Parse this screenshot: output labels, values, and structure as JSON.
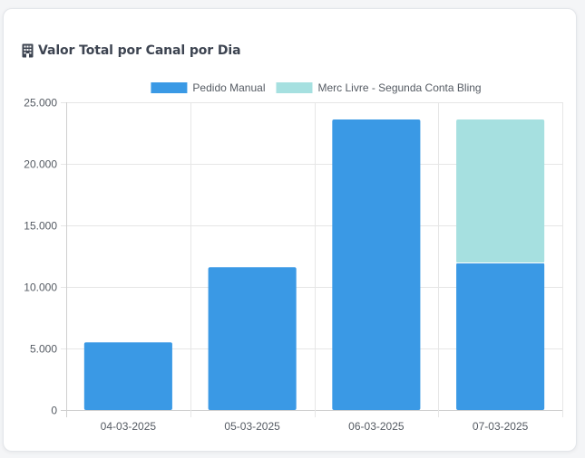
{
  "card": {
    "title": "Valor Total por Canal por Dia",
    "icon": "building-icon"
  },
  "colors": {
    "series_pedido_manual": "#3a99e5",
    "series_merc_livre": "#a6e0e0",
    "grid": "#e6e6e6",
    "axis_text": "#555b63",
    "title": "#3d4451"
  },
  "chart_data": {
    "type": "bar",
    "stacked": true,
    "title": "Valor Total por Canal por Dia",
    "xlabel": "",
    "ylabel": "",
    "ylim": [
      0,
      25000
    ],
    "yticks": [
      0,
      5000,
      10000,
      15000,
      20000,
      25000
    ],
    "ytick_labels": [
      "0",
      "5.000",
      "10.000",
      "15.000",
      "20.000",
      "25.000"
    ],
    "categories": [
      "04-03-2025",
      "05-03-2025",
      "06-03-2025",
      "07-03-2025"
    ],
    "series": [
      {
        "name": "Pedido Manual",
        "values": [
          5500,
          11600,
          23600,
          11950
        ]
      },
      {
        "name": "Merc Livre - Segunda Conta Bling",
        "values": [
          0,
          0,
          0,
          11650
        ]
      }
    ],
    "legend_position": "top",
    "grid": true
  }
}
